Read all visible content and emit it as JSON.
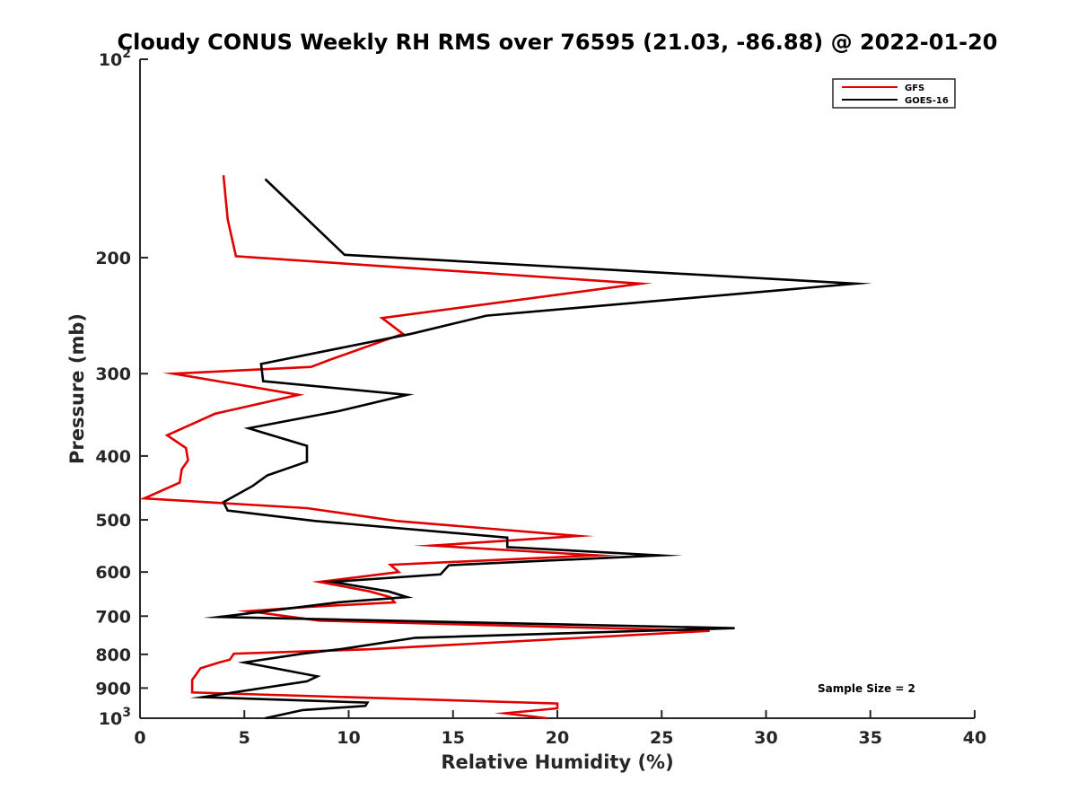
{
  "chart_data": {
    "type": "line",
    "title": "Cloudy CONUS Weekly RH RMS over 76595 (21.03, -86.88) @ 2022-01-20",
    "xlabel": "Relative Humidity (%)",
    "ylabel": "Pressure (mb)",
    "xlim": [
      0,
      40
    ],
    "ylim": [
      100,
      1000
    ],
    "yscale": "log",
    "y_inverted": true,
    "grid": false,
    "x_ticks": [
      {
        "value": 0,
        "label": "0"
      },
      {
        "value": 5,
        "label": "5"
      },
      {
        "value": 10,
        "label": "10"
      },
      {
        "value": 15,
        "label": "15"
      },
      {
        "value": 20,
        "label": "20"
      },
      {
        "value": 25,
        "label": "25"
      },
      {
        "value": 30,
        "label": "30"
      },
      {
        "value": 35,
        "label": "35"
      },
      {
        "value": 40,
        "label": "40"
      }
    ],
    "y_ticks": [
      {
        "value": 100,
        "base": "10",
        "exp": "2"
      },
      {
        "value": 200,
        "label": "200"
      },
      {
        "value": 300,
        "label": "300"
      },
      {
        "value": 400,
        "label": "400"
      },
      {
        "value": 500,
        "label": "500"
      },
      {
        "value": 600,
        "label": "600"
      },
      {
        "value": 700,
        "label": "700"
      },
      {
        "value": 800,
        "label": "800"
      },
      {
        "value": 900,
        "label": "900"
      },
      {
        "value": 1000,
        "base": "10",
        "exp": "3"
      }
    ],
    "legend_position": "top-right",
    "series": [
      {
        "name": "GFS",
        "color": "#e00000",
        "points": [
          [
            4.0,
            150
          ],
          [
            4.2,
            175
          ],
          [
            4.6,
            199
          ],
          [
            24.0,
            219
          ],
          [
            11.6,
            247
          ],
          [
            12.6,
            261
          ],
          [
            9.2,
            285
          ],
          [
            8.2,
            293
          ],
          [
            1.6,
            300
          ],
          [
            7.6,
            323
          ],
          [
            3.6,
            345
          ],
          [
            1.3,
            372
          ],
          [
            2.2,
            389
          ],
          [
            2.3,
            406
          ],
          [
            2.0,
            419
          ],
          [
            1.9,
            439
          ],
          [
            0.2,
            464
          ],
          [
            8.0,
            480
          ],
          [
            12.3,
            502
          ],
          [
            21.0,
            529
          ],
          [
            14.0,
            547
          ],
          [
            21.9,
            566
          ],
          [
            12.0,
            585
          ],
          [
            12.4,
            600
          ],
          [
            8.6,
            621
          ],
          [
            11.0,
            642
          ],
          [
            12.0,
            655
          ],
          [
            12.2,
            667
          ],
          [
            8.0,
            678
          ],
          [
            5.2,
            688
          ],
          [
            8.6,
            711
          ],
          [
            27.3,
            737
          ],
          [
            11.0,
            786
          ],
          [
            4.5,
            798
          ],
          [
            4.3,
            815
          ],
          [
            3.8,
            823
          ],
          [
            2.9,
            840
          ],
          [
            2.5,
            875
          ],
          [
            2.5,
            914
          ],
          [
            20.0,
            950
          ],
          [
            20.0,
            966
          ],
          [
            17.5,
            983
          ],
          [
            19.5,
            1000
          ]
        ]
      },
      {
        "name": "GOES-16",
        "color": "#000000",
        "points": [
          [
            6.0,
            152
          ],
          [
            9.8,
            198
          ],
          [
            34.3,
            219
          ],
          [
            16.6,
            245
          ],
          [
            13.0,
            261
          ],
          [
            5.8,
            290
          ],
          [
            5.9,
            308
          ],
          [
            12.8,
            323
          ],
          [
            9.5,
            342
          ],
          [
            5.2,
            363
          ],
          [
            8.0,
            386
          ],
          [
            8.0,
            408
          ],
          [
            6.1,
            428
          ],
          [
            5.4,
            444
          ],
          [
            4.0,
            470
          ],
          [
            4.2,
            484
          ],
          [
            8.4,
            502
          ],
          [
            17.6,
            532
          ],
          [
            17.6,
            550
          ],
          [
            24.9,
            566
          ],
          [
            14.8,
            586
          ],
          [
            14.4,
            605
          ],
          [
            9.2,
            621
          ],
          [
            11.9,
            642
          ],
          [
            12.8,
            655
          ],
          [
            9.5,
            667
          ],
          [
            3.8,
            702
          ],
          [
            28.5,
            730
          ],
          [
            13.2,
            755
          ],
          [
            9.7,
            785
          ],
          [
            7.8,
            798
          ],
          [
            5.0,
            823
          ],
          [
            8.5,
            864
          ],
          [
            8.0,
            879
          ],
          [
            3.0,
            929
          ],
          [
            10.9,
            947
          ],
          [
            10.8,
            958
          ],
          [
            7.8,
            972
          ],
          [
            6.0,
            1000
          ]
        ]
      }
    ],
    "annotations": [
      {
        "text": "Sample Size = 2"
      }
    ]
  }
}
